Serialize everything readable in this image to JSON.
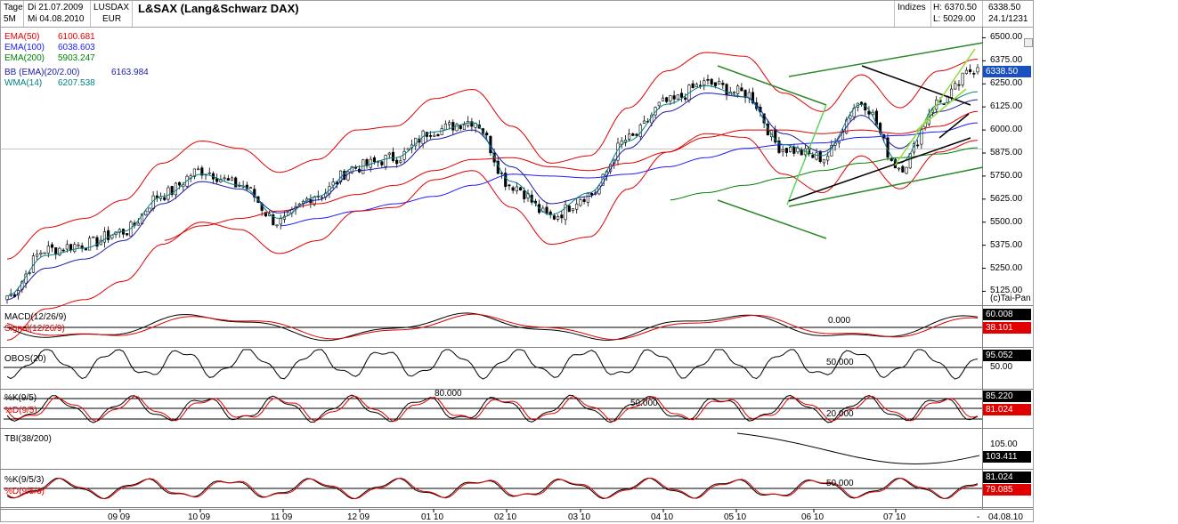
{
  "header": {
    "period": "Tage",
    "timeframe": "5M",
    "date_start": "Di 21.07.2009",
    "date_end": "Mi 04.08.2010",
    "symbol": "LUSDAX",
    "currency": "EUR",
    "title": "L&SAX (Lang&Schwarz DAX)",
    "index_label": "Indizes",
    "high_label": "H: 6370.50",
    "low_label": "L: 5029.00",
    "last_price": "6338.50",
    "counter": "24.1/1231"
  },
  "legend": [
    {
      "name": "EMA(50)",
      "value": "6100.681",
      "color": "#e00000"
    },
    {
      "name": "EMA(100)",
      "value": "6038.603",
      "color": "#1a1aff"
    },
    {
      "name": "EMA(200)",
      "value": "5903.247",
      "color": "#008000"
    },
    {
      "name": "BB (EMA)(20/2.00)",
      "value": "6163.984",
      "color": "#1a1aaa"
    },
    {
      "name": "WMA(14)",
      "value": "6207.538",
      "color": "#008080"
    }
  ],
  "icons": {
    "settings": "settings-icon"
  },
  "price_axis": {
    "ticks": [
      "6500.00",
      "6375.00",
      "6250.00",
      "6125.00",
      "6000.00",
      "5875.00",
      "5750.00",
      "5625.00",
      "5500.00",
      "5375.00",
      "5250.00",
      "5125.00"
    ],
    "current_tag": "6338.50",
    "copyright": "(c)Tai-Pan"
  },
  "indicators": {
    "macd": {
      "name": "MACD(12/26/9)",
      "signal_name": "Signal(12/26/9)",
      "zero_label": "0.000",
      "value": "60.008",
      "signal_value": "38.101"
    },
    "obos": {
      "name": "OBOS(20)",
      "level_label": "50.000",
      "axis_label": "50.00",
      "value": "95.052"
    },
    "stoch": {
      "k_name": "%K(9/5)",
      "d_name": "%D(9/5)",
      "level_80": "80.000",
      "level_50": "50.000",
      "level_20": "20.000",
      "k_value": "85.220",
      "d_value": "81.024"
    },
    "tbi": {
      "name": "TBI(38/200)",
      "axis_label": "105.00",
      "value": "103.411"
    },
    "stoch2": {
      "k_name": "%K(9/5/3)",
      "d_name": "%D(9/5/3)",
      "level_label": "50.000",
      "k_value": "81.024",
      "d_value": "79.085"
    }
  },
  "time_axis": {
    "labels": [
      "09 09",
      "10 09",
      "11 09",
      "12 09",
      "01 10",
      "02 10",
      "03 10",
      "04 10",
      "05 10",
      "06 10",
      "07 10"
    ],
    "end_dash": "-",
    "end_date": "04.08.10"
  },
  "chart_data": {
    "type": "line",
    "title": "L&SAX (Lang&Schwarz DAX)",
    "xlabel": "",
    "ylabel": "",
    "ylim": [
      5050,
      6560
    ],
    "x": [
      "2009-07-21",
      "2009-08-03",
      "2009-08-17",
      "2009-09-01",
      "2009-09-15",
      "2009-10-01",
      "2009-10-15",
      "2009-11-01",
      "2009-11-15",
      "2009-12-01",
      "2009-12-15",
      "2010-01-04",
      "2010-01-15",
      "2010-02-01",
      "2010-02-15",
      "2010-03-01",
      "2010-03-15",
      "2010-04-01",
      "2010-04-15",
      "2010-05-01",
      "2010-05-15",
      "2010-06-01",
      "2010-06-15",
      "2010-07-01",
      "2010-07-15",
      "2010-08-04"
    ],
    "series": [
      {
        "name": "L&SAX",
        "values": [
          5100,
          5350,
          5380,
          5450,
          5650,
          5780,
          5700,
          5500,
          5650,
          5800,
          5850,
          6000,
          6050,
          5700,
          5530,
          5650,
          5950,
          6150,
          6250,
          6200,
          5900,
          5850,
          6150,
          5800,
          6150,
          6338.5
        ]
      },
      {
        "name": "EMA(50)",
        "values": [
          null,
          null,
          null,
          null,
          5400,
          5480,
          5520,
          5560,
          5600,
          5650,
          5700,
          5780,
          5840,
          5850,
          5800,
          5780,
          5820,
          5880,
          5960,
          6000,
          6000,
          5980,
          6000,
          5980,
          6020,
          6100.681
        ]
      },
      {
        "name": "EMA(100)",
        "values": [
          null,
          null,
          null,
          null,
          null,
          null,
          null,
          5480,
          5520,
          5560,
          5600,
          5640,
          5700,
          5760,
          5750,
          5740,
          5760,
          5800,
          5850,
          5900,
          5920,
          5930,
          5960,
          5970,
          5990,
          6038.603
        ]
      },
      {
        "name": "EMA(200)",
        "values": [
          null,
          null,
          null,
          null,
          null,
          null,
          null,
          null,
          null,
          null,
          null,
          null,
          null,
          null,
          null,
          null,
          null,
          5620,
          5660,
          5700,
          5740,
          5780,
          5820,
          5850,
          5870,
          5903.247
        ]
      },
      {
        "name": "BB (EMA)(20/2.00)",
        "values": [
          5080,
          5250,
          5300,
          5400,
          5600,
          5720,
          5680,
          5550,
          5620,
          5780,
          5800,
          5950,
          6000,
          5800,
          5600,
          5640,
          5900,
          6100,
          6200,
          6180,
          5980,
          5880,
          6080,
          5900,
          6100,
          6163.984
        ]
      },
      {
        "name": "WMA(14)",
        "values": [
          5100,
          5320,
          5360,
          5450,
          5640,
          5760,
          5700,
          5520,
          5640,
          5800,
          5850,
          5990,
          6040,
          5720,
          5540,
          5660,
          5940,
          6140,
          6240,
          6180,
          5920,
          5860,
          6140,
          5820,
          6140,
          6207.538
        ]
      }
    ]
  }
}
